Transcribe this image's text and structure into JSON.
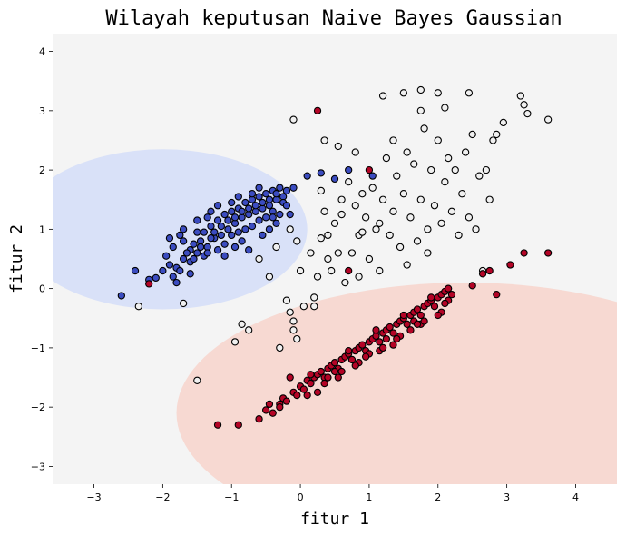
{
  "chart_data": {
    "type": "scatter",
    "title": "Wilayah keputusan Naive Bayes Gaussian",
    "xlabel": "fitur 1",
    "ylabel": "fitur 2",
    "xlim": [
      -3.6,
      4.6
    ],
    "ylim": [
      -3.3,
      4.3
    ],
    "xticks": [
      -3,
      -2,
      -1,
      0,
      1,
      2,
      3,
      4
    ],
    "yticks": [
      -3,
      -2,
      -1,
      0,
      1,
      2,
      3,
      4
    ],
    "grid": false,
    "colors": {
      "background_region": "#f4f4f4",
      "blue_region": "#d9e1f8",
      "red_region": "#f7d9d2",
      "blue_class": "#3b4cc0",
      "white_class": "#f0f0f0",
      "red_class": "#b40426",
      "marker_edge": "#000000"
    },
    "regions": [
      {
        "class": "blue",
        "center": [
          -2.0,
          1.0
        ],
        "radius_x": 2.1,
        "radius_y": 1.35
      },
      {
        "class": "red",
        "center": [
          2.4,
          -2.1
        ],
        "radius_x": 4.2,
        "radius_y": 2.2
      }
    ],
    "series": [
      {
        "class": "blue",
        "points": [
          [
            -2.6,
            -0.12
          ],
          [
            -2.4,
            0.3
          ],
          [
            -2.2,
            0.15
          ],
          [
            -2.1,
            0.18
          ],
          [
            -1.95,
            0.55
          ],
          [
            -1.9,
            0.4
          ],
          [
            -1.85,
            0.2
          ],
          [
            -1.8,
            0.1
          ],
          [
            -1.85,
            0.7
          ],
          [
            -1.75,
            0.9
          ],
          [
            -1.7,
            0.5
          ],
          [
            -1.6,
            0.65
          ],
          [
            -1.55,
            0.75
          ],
          [
            -1.5,
            0.6
          ],
          [
            -1.45,
            0.8
          ],
          [
            -1.4,
            0.95
          ],
          [
            -1.35,
            0.7
          ],
          [
            -1.3,
            1.05
          ],
          [
            -1.25,
            0.85
          ],
          [
            -1.2,
            1.15
          ],
          [
            -1.15,
            0.9
          ],
          [
            -1.1,
            1.25
          ],
          [
            -1.05,
            1.0
          ],
          [
            -1.0,
            1.3
          ],
          [
            -0.95,
            1.1
          ],
          [
            -0.9,
            1.35
          ],
          [
            -0.85,
            1.2
          ],
          [
            -0.8,
            1.45
          ],
          [
            -0.75,
            1.25
          ],
          [
            -0.7,
            1.5
          ],
          [
            -0.65,
            1.3
          ],
          [
            -0.6,
            1.55
          ],
          [
            -0.55,
            1.35
          ],
          [
            -0.5,
            1.6
          ],
          [
            -0.45,
            1.4
          ],
          [
            -0.4,
            1.65
          ],
          [
            -0.35,
            1.5
          ],
          [
            -0.3,
            1.7
          ],
          [
            -0.25,
            1.55
          ],
          [
            -0.2,
            1.65
          ],
          [
            -1.8,
            0.35
          ],
          [
            -1.7,
            0.8
          ],
          [
            -1.6,
            0.45
          ],
          [
            -1.5,
            0.95
          ],
          [
            -1.4,
            0.55
          ],
          [
            -1.3,
            0.85
          ],
          [
            -1.2,
            0.65
          ],
          [
            -1.1,
            0.75
          ],
          [
            -1.0,
            0.9
          ],
          [
            -0.9,
            0.95
          ],
          [
            -0.8,
            1.0
          ],
          [
            -0.7,
            1.05
          ],
          [
            -0.6,
            1.15
          ],
          [
            -0.5,
            1.2
          ],
          [
            -0.4,
            1.3
          ],
          [
            -0.3,
            1.25
          ],
          [
            -1.65,
            0.6
          ],
          [
            -1.45,
            0.7
          ],
          [
            -1.25,
            0.95
          ],
          [
            -1.05,
            1.15
          ],
          [
            -0.85,
            1.3
          ],
          [
            -0.65,
            1.4
          ],
          [
            -0.45,
            1.5
          ],
          [
            -0.25,
            1.45
          ],
          [
            -1.9,
            0.85
          ],
          [
            -1.75,
            0.3
          ],
          [
            -1.55,
            0.5
          ],
          [
            -1.35,
            0.6
          ],
          [
            -1.15,
            1.05
          ],
          [
            -0.95,
            1.2
          ],
          [
            -0.75,
            1.35
          ],
          [
            -0.55,
            1.45
          ],
          [
            -0.35,
            1.6
          ],
          [
            -1.3,
            1.3
          ],
          [
            -1.2,
            1.4
          ],
          [
            -1.0,
            1.45
          ],
          [
            -0.9,
            1.55
          ],
          [
            -0.7,
            1.6
          ],
          [
            -0.6,
            1.7
          ],
          [
            -0.4,
            1.2
          ],
          [
            -0.2,
            1.4
          ],
          [
            -0.1,
            1.7
          ],
          [
            0.1,
            1.9
          ],
          [
            0.3,
            1.95
          ],
          [
            0.5,
            1.85
          ],
          [
            0.7,
            2.0
          ],
          [
            1.05,
            1.9
          ],
          [
            -1.6,
            0.25
          ],
          [
            -1.7,
            1.0
          ],
          [
            -1.5,
            1.15
          ],
          [
            -1.35,
            1.2
          ],
          [
            -1.1,
            0.55
          ],
          [
            -0.95,
            0.7
          ],
          [
            -0.85,
            0.8
          ],
          [
            -0.75,
            0.65
          ],
          [
            -0.55,
            0.9
          ],
          [
            -0.45,
            1.0
          ],
          [
            -0.35,
            1.1
          ],
          [
            -0.15,
            1.25
          ],
          [
            -2.0,
            0.3
          ]
        ]
      },
      {
        "class": "white",
        "points": [
          [
            -2.35,
            -0.3
          ],
          [
            -1.7,
            -0.25
          ],
          [
            -1.5,
            -1.55
          ],
          [
            -0.95,
            -0.9
          ],
          [
            -0.85,
            -0.6
          ],
          [
            -0.75,
            -0.7
          ],
          [
            -0.6,
            0.5
          ],
          [
            -0.45,
            0.2
          ],
          [
            -0.35,
            0.7
          ],
          [
            -0.3,
            -1.0
          ],
          [
            -0.2,
            -0.2
          ],
          [
            -0.15,
            -0.4
          ],
          [
            -0.15,
            1.0
          ],
          [
            -0.1,
            -0.55
          ],
          [
            -0.1,
            -0.7
          ],
          [
            -0.05,
            0.8
          ],
          [
            0.0,
            0.3
          ],
          [
            0.05,
            -0.3
          ],
          [
            0.15,
            0.6
          ],
          [
            0.2,
            -0.3
          ],
          [
            0.25,
            0.2
          ],
          [
            0.3,
            0.85
          ],
          [
            0.35,
            1.3
          ],
          [
            0.4,
            0.9
          ],
          [
            0.45,
            0.3
          ],
          [
            0.5,
            1.1
          ],
          [
            0.55,
            0.6
          ],
          [
            0.6,
            1.5
          ],
          [
            0.65,
            0.1
          ],
          [
            0.7,
            1.8
          ],
          [
            0.75,
            0.6
          ],
          [
            0.8,
            1.4
          ],
          [
            0.85,
            0.9
          ],
          [
            0.9,
            1.6
          ],
          [
            0.95,
            1.2
          ],
          [
            1.0,
            0.5
          ],
          [
            1.05,
            1.7
          ],
          [
            1.1,
            1.0
          ],
          [
            1.15,
            0.3
          ],
          [
            1.2,
            1.5
          ],
          [
            1.25,
            2.2
          ],
          [
            1.3,
            0.9
          ],
          [
            1.35,
            2.5
          ],
          [
            1.4,
            1.9
          ],
          [
            1.45,
            0.7
          ],
          [
            1.5,
            1.6
          ],
          [
            1.55,
            2.3
          ],
          [
            1.6,
            1.2
          ],
          [
            1.65,
            2.1
          ],
          [
            1.7,
            0.8
          ],
          [
            1.75,
            1.5
          ],
          [
            1.8,
            2.7
          ],
          [
            1.85,
            1.0
          ],
          [
            1.9,
            2.0
          ],
          [
            1.95,
            1.4
          ],
          [
            2.0,
            2.5
          ],
          [
            2.05,
            1.1
          ],
          [
            2.1,
            1.8
          ],
          [
            2.15,
            2.2
          ],
          [
            2.2,
            1.3
          ],
          [
            2.25,
            2.0
          ],
          [
            2.3,
            0.9
          ],
          [
            2.35,
            1.6
          ],
          [
            2.4,
            2.3
          ],
          [
            2.45,
            1.2
          ],
          [
            2.5,
            2.6
          ],
          [
            2.55,
            1.0
          ],
          [
            2.6,
            1.9
          ],
          [
            2.65,
            0.3
          ],
          [
            2.7,
            2.0
          ],
          [
            2.75,
            1.5
          ],
          [
            2.8,
            2.5
          ],
          [
            2.85,
            2.6
          ],
          [
            2.95,
            2.8
          ],
          [
            3.2,
            3.25
          ],
          [
            3.25,
            3.1
          ],
          [
            3.3,
            2.95
          ],
          [
            3.6,
            2.85
          ],
          [
            1.2,
            3.25
          ],
          [
            1.5,
            3.3
          ],
          [
            1.75,
            3.35
          ],
          [
            2.0,
            3.3
          ],
          [
            2.45,
            3.3
          ],
          [
            2.1,
            3.05
          ],
          [
            1.75,
            3.0
          ],
          [
            -0.1,
            2.85
          ],
          [
            0.35,
            2.5
          ],
          [
            0.55,
            2.4
          ],
          [
            0.8,
            2.3
          ],
          [
            0.3,
            1.65
          ],
          [
            0.6,
            1.25
          ],
          [
            0.9,
            0.95
          ],
          [
            1.15,
            1.1
          ],
          [
            1.35,
            1.3
          ],
          [
            1.55,
            0.4
          ],
          [
            1.85,
            0.6
          ],
          [
            0.4,
            0.5
          ],
          [
            0.2,
            -0.15
          ],
          [
            -0.05,
            -0.85
          ],
          [
            0.85,
            0.2
          ]
        ]
      },
      {
        "class": "red",
        "points": [
          [
            -1.2,
            -2.3
          ],
          [
            -0.9,
            -2.3
          ],
          [
            -0.6,
            -2.2
          ],
          [
            -0.5,
            -2.05
          ],
          [
            -0.4,
            -2.1
          ],
          [
            -0.3,
            -1.95
          ],
          [
            -0.25,
            -1.85
          ],
          [
            -0.2,
            -1.9
          ],
          [
            -0.1,
            -1.75
          ],
          [
            -0.05,
            -1.8
          ],
          [
            0.0,
            -1.65
          ],
          [
            0.05,
            -1.7
          ],
          [
            0.1,
            -1.55
          ],
          [
            0.15,
            -1.6
          ],
          [
            0.2,
            -1.5
          ],
          [
            0.25,
            -1.45
          ],
          [
            0.3,
            -1.4
          ],
          [
            0.35,
            -1.5
          ],
          [
            0.4,
            -1.35
          ],
          [
            0.45,
            -1.3
          ],
          [
            0.5,
            -1.25
          ],
          [
            0.55,
            -1.35
          ],
          [
            0.6,
            -1.2
          ],
          [
            0.65,
            -1.15
          ],
          [
            0.7,
            -1.1
          ],
          [
            0.75,
            -1.2
          ],
          [
            0.8,
            -1.05
          ],
          [
            0.85,
            -1.0
          ],
          [
            0.9,
            -0.95
          ],
          [
            0.95,
            -1.05
          ],
          [
            1.0,
            -0.9
          ],
          [
            1.05,
            -0.85
          ],
          [
            1.1,
            -0.8
          ],
          [
            1.15,
            -0.9
          ],
          [
            1.2,
            -0.75
          ],
          [
            1.25,
            -0.7
          ],
          [
            1.3,
            -0.65
          ],
          [
            1.35,
            -0.75
          ],
          [
            1.4,
            -0.6
          ],
          [
            1.45,
            -0.55
          ],
          [
            1.5,
            -0.5
          ],
          [
            1.55,
            -0.6
          ],
          [
            1.6,
            -0.45
          ],
          [
            1.65,
            -0.4
          ],
          [
            1.7,
            -0.35
          ],
          [
            1.75,
            -0.45
          ],
          [
            1.8,
            -0.3
          ],
          [
            1.85,
            -0.25
          ],
          [
            1.9,
            -0.2
          ],
          [
            1.95,
            -0.3
          ],
          [
            2.0,
            -0.15
          ],
          [
            2.05,
            -0.1
          ],
          [
            2.1,
            -0.05
          ],
          [
            2.15,
            -0.2
          ],
          [
            2.2,
            -0.1
          ],
          [
            -0.15,
            -1.5
          ],
          [
            0.25,
            -1.75
          ],
          [
            0.55,
            -1.5
          ],
          [
            0.85,
            -1.25
          ],
          [
            1.15,
            -1.05
          ],
          [
            1.45,
            -0.8
          ],
          [
            1.75,
            -0.6
          ],
          [
            2.05,
            -0.4
          ],
          [
            0.6,
            -1.4
          ],
          [
            1.0,
            -1.1
          ],
          [
            1.4,
            -0.85
          ],
          [
            1.8,
            -0.55
          ],
          [
            0.4,
            -1.5
          ],
          [
            0.8,
            -1.3
          ],
          [
            1.2,
            -1.0
          ],
          [
            1.6,
            -0.7
          ],
          [
            2.0,
            -0.45
          ],
          [
            0.1,
            -1.8
          ],
          [
            -0.3,
            -2.0
          ],
          [
            0.7,
            -1.05
          ],
          [
            1.1,
            -0.7
          ],
          [
            1.5,
            -0.45
          ],
          [
            1.9,
            -0.15
          ],
          [
            2.5,
            0.05
          ],
          [
            2.65,
            0.25
          ],
          [
            2.75,
            0.3
          ],
          [
            2.85,
            -0.1
          ],
          [
            3.05,
            0.4
          ],
          [
            3.25,
            0.6
          ],
          [
            3.6,
            0.6
          ],
          [
            0.25,
            3.0
          ],
          [
            1.0,
            2.0
          ],
          [
            0.7,
            0.3
          ],
          [
            -2.2,
            0.08
          ],
          [
            2.15,
            0.0
          ],
          [
            0.35,
            -1.6
          ],
          [
            0.95,
            -1.15
          ],
          [
            1.25,
            -0.85
          ],
          [
            1.65,
            -0.55
          ],
          [
            2.1,
            -0.25
          ],
          [
            -0.45,
            -1.95
          ],
          [
            0.15,
            -1.45
          ],
          [
            0.5,
            -1.4
          ],
          [
            1.35,
            -0.95
          ],
          [
            1.7,
            -0.6
          ]
        ]
      }
    ]
  }
}
